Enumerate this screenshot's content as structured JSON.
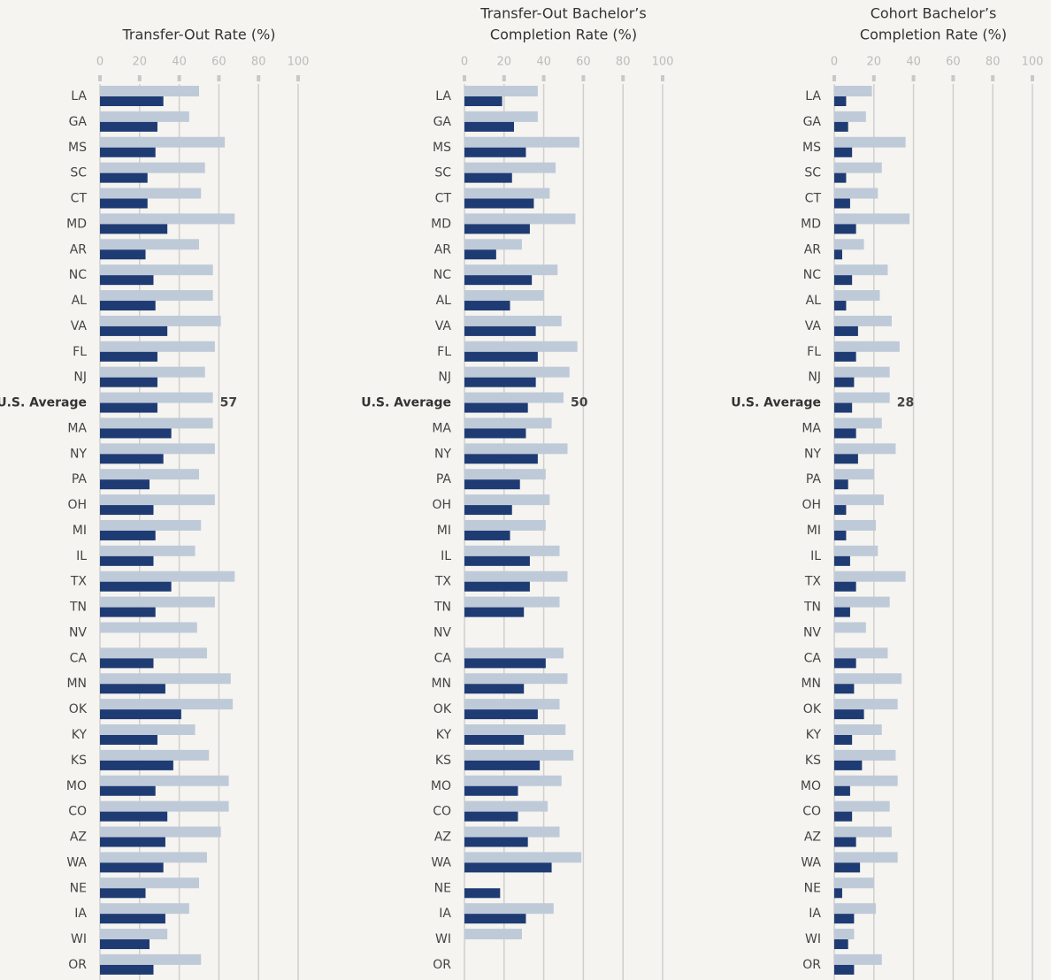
{
  "chart_data": [
    {
      "type": "bar",
      "orientation": "horizontal",
      "title": [
        "Transfer-Out Rate (%)"
      ],
      "categories": [
        "LA",
        "GA",
        "MS",
        "SC",
        "CT",
        "MD",
        "AR",
        "NC",
        "AL",
        "VA",
        "FL",
        "NJ",
        "U.S. Average",
        "MA",
        "NY",
        "PA",
        "OH",
        "MI",
        "IL",
        "TX",
        "TN",
        "NV",
        "CA",
        "MN",
        "OK",
        "KY",
        "KS",
        "MO",
        "CO",
        "AZ",
        "WA",
        "NE",
        "IA",
        "WI",
        "OR"
      ],
      "series": [
        {
          "color": "#bfcad9",
          "values": [
            50,
            45,
            63,
            53,
            51,
            68,
            50,
            57,
            57,
            61,
            58,
            53,
            57,
            57,
            58,
            50,
            58,
            51,
            48,
            68,
            58,
            49,
            54,
            66,
            67,
            48,
            55,
            65,
            65,
            61,
            54,
            50,
            45,
            34,
            51
          ],
          "value_labels": [
            null,
            null,
            null,
            null,
            null,
            null,
            null,
            null,
            null,
            null,
            null,
            null,
            "57",
            null,
            null,
            null,
            null,
            null,
            null,
            null,
            null,
            null,
            null,
            null,
            null,
            null,
            null,
            null,
            null,
            null,
            null,
            null,
            null,
            null,
            null
          ]
        },
        {
          "color": "#1f3b73",
          "values": [
            32,
            29,
            28,
            24,
            24,
            34,
            23,
            27,
            28,
            34,
            29,
            29,
            29,
            36,
            32,
            25,
            27,
            28,
            27,
            36,
            28,
            0,
            27,
            33,
            41,
            29,
            37,
            28,
            34,
            33,
            32,
            23,
            33,
            25,
            27
          ]
        }
      ],
      "xlim": [
        0,
        100
      ],
      "xticks": [
        0,
        20,
        40,
        60,
        80,
        100
      ],
      "grid": true
    },
    {
      "type": "bar",
      "orientation": "horizontal",
      "title": [
        "Transfer-Out Bachelor’s",
        "Completion Rate (%)"
      ],
      "categories": [
        "LA",
        "GA",
        "MS",
        "SC",
        "CT",
        "MD",
        "AR",
        "NC",
        "AL",
        "VA",
        "FL",
        "NJ",
        "U.S. Average",
        "MA",
        "NY",
        "PA",
        "OH",
        "MI",
        "IL",
        "TX",
        "TN",
        "NV",
        "CA",
        "MN",
        "OK",
        "KY",
        "KS",
        "MO",
        "CO",
        "AZ",
        "WA",
        "NE",
        "IA",
        "WI",
        "OR"
      ],
      "series": [
        {
          "color": "#bfcad9",
          "values": [
            37,
            37,
            58,
            46,
            43,
            56,
            29,
            47,
            40,
            49,
            57,
            53,
            50,
            44,
            52,
            41,
            43,
            41,
            48,
            52,
            48,
            0,
            50,
            52,
            48,
            51,
            55,
            49,
            42,
            48,
            59,
            0,
            45,
            29,
            0
          ],
          "value_labels": [
            null,
            null,
            null,
            null,
            null,
            null,
            null,
            null,
            null,
            null,
            null,
            null,
            "50",
            null,
            null,
            null,
            null,
            null,
            null,
            null,
            null,
            null,
            null,
            null,
            null,
            null,
            null,
            null,
            null,
            null,
            null,
            null,
            null,
            null,
            null
          ]
        },
        {
          "color": "#1f3b73",
          "values": [
            19,
            25,
            31,
            24,
            35,
            33,
            16,
            34,
            23,
            36,
            37,
            36,
            32,
            31,
            37,
            28,
            24,
            23,
            33,
            33,
            30,
            0,
            41,
            30,
            37,
            30,
            38,
            27,
            27,
            32,
            44,
            18,
            31,
            0,
            0
          ]
        }
      ],
      "xlim": [
        0,
        100
      ],
      "xticks": [
        0,
        20,
        40,
        60,
        80,
        100
      ],
      "grid": true
    },
    {
      "type": "bar",
      "orientation": "horizontal",
      "title": [
        "Cohort Bachelor’s",
        "Completion Rate (%)"
      ],
      "categories": [
        "LA",
        "GA",
        "MS",
        "SC",
        "CT",
        "MD",
        "AR",
        "NC",
        "AL",
        "VA",
        "FL",
        "NJ",
        "U.S. Average",
        "MA",
        "NY",
        "PA",
        "OH",
        "MI",
        "IL",
        "TX",
        "TN",
        "NV",
        "CA",
        "MN",
        "OK",
        "KY",
        "KS",
        "MO",
        "CO",
        "AZ",
        "WA",
        "NE",
        "IA",
        "WI",
        "OR"
      ],
      "series": [
        {
          "color": "#bfcad9",
          "values": [
            19,
            16,
            36,
            24,
            22,
            38,
            15,
            27,
            23,
            29,
            33,
            28,
            28,
            24,
            31,
            20,
            25,
            21,
            22,
            36,
            28,
            16,
            27,
            34,
            32,
            24,
            31,
            32,
            28,
            29,
            32,
            20,
            21,
            10,
            24
          ],
          "value_labels": [
            null,
            null,
            null,
            null,
            null,
            null,
            null,
            null,
            null,
            null,
            null,
            null,
            "28",
            null,
            null,
            null,
            null,
            null,
            null,
            null,
            null,
            null,
            null,
            null,
            null,
            null,
            null,
            null,
            null,
            null,
            null,
            null,
            null,
            null,
            null
          ]
        },
        {
          "color": "#1f3b73",
          "values": [
            6,
            7,
            9,
            6,
            8,
            11,
            4,
            9,
            6,
            12,
            11,
            10,
            9,
            11,
            12,
            7,
            6,
            6,
            8,
            11,
            8,
            0,
            11,
            10,
            15,
            9,
            14,
            8,
            9,
            11,
            13,
            4,
            10,
            7,
            10
          ]
        }
      ],
      "xlim": [
        0,
        100
      ],
      "xticks": [
        0,
        20,
        40,
        60,
        80,
        100
      ],
      "grid": true
    }
  ]
}
